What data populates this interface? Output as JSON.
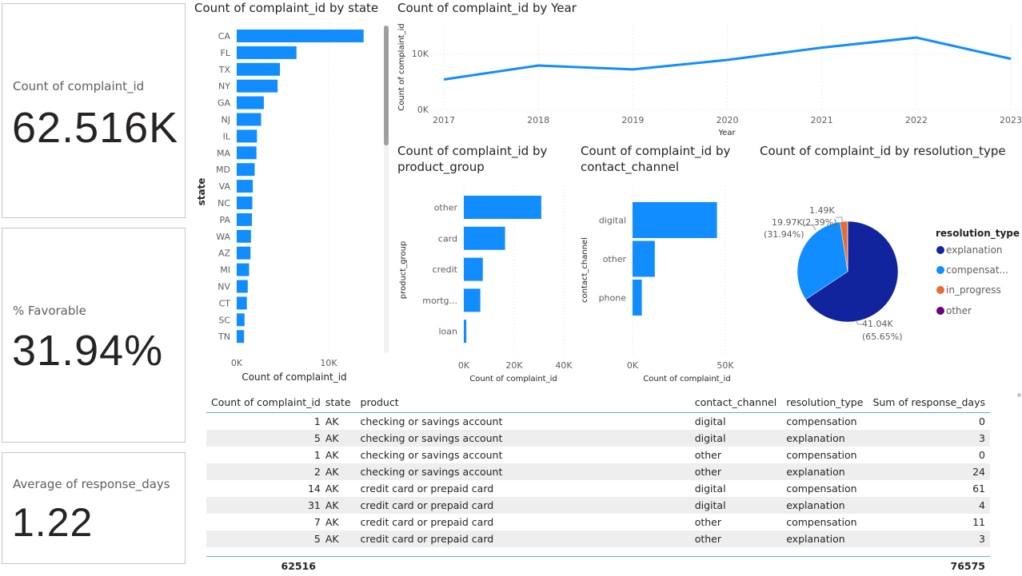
{
  "cards": {
    "count": {
      "label": "Count of complaint_id",
      "value": "62.516K"
    },
    "favorable": {
      "label": "% Favorable",
      "value": "31.94%"
    },
    "response": {
      "label": "Average of response_days",
      "value": "1.22"
    }
  },
  "state_chart": {
    "title": "Count of complaint_id by state",
    "xlabel": "Count of complaint_id",
    "ylabel": "state",
    "xticks": [
      "0K",
      "10K"
    ]
  },
  "year_chart": {
    "title": "Count of complaint_id by Year",
    "xlabel": "Year",
    "ylabel": "Count of complaint_id",
    "yticks": [
      "0K",
      "10K"
    ]
  },
  "product_chart": {
    "title_line1": "Count of complaint_id by",
    "title_line2": "product_group",
    "xlabel": "Count of complaint_id",
    "ylabel": "product_group",
    "xticks": [
      "0K",
      "20K",
      "40K"
    ]
  },
  "channel_chart": {
    "title_line1": "Count of complaint_id by",
    "title_line2": "contact_channel",
    "xlabel": "Count of complaint_id",
    "ylabel": "contact_channel",
    "xticks": [
      "0K",
      "50K"
    ]
  },
  "resolution_chart": {
    "title": "Count of complaint_id by resolution_type",
    "legend_title": "resolution_type",
    "legend": [
      {
        "label": "explanation",
        "color": "#12239e"
      },
      {
        "label": "compensat...",
        "color": "#118dff"
      },
      {
        "label": "in_progress",
        "color": "#e66c37"
      },
      {
        "label": "other",
        "color": "#6b007b"
      }
    ],
    "data_labels": {
      "explanation_value": "41.04K",
      "explanation_pct": "(65.65%)",
      "compensation_value": "19.97K",
      "compensation_pct": "(31.94%)",
      "in_progress_value": "1.49K",
      "in_progress_pct": "(2.39%)"
    }
  },
  "chart_data": [
    {
      "type": "bar",
      "title": "Count of complaint_id by state",
      "xlabel": "Count of complaint_id",
      "ylabel": "state",
      "orientation": "horizontal",
      "categories": [
        "CA",
        "FL",
        "TX",
        "NY",
        "GA",
        "NJ",
        "IL",
        "MA",
        "MD",
        "VA",
        "NC",
        "PA",
        "WA",
        "AZ",
        "MI",
        "NV",
        "CT",
        "SC",
        "TN"
      ],
      "values": [
        13800,
        6500,
        4700,
        4450,
        2950,
        2650,
        2200,
        2150,
        1950,
        1750,
        1700,
        1650,
        1550,
        1500,
        1350,
        1200,
        1100,
        850,
        800
      ],
      "xlim": [
        0,
        14000
      ],
      "color": "#118dff"
    },
    {
      "type": "line",
      "title": "Count of complaint_id by Year",
      "xlabel": "Year",
      "ylabel": "Count of complaint_id",
      "x": [
        "2017",
        "2018",
        "2019",
        "2020",
        "2021",
        "2022",
        "2023"
      ],
      "values": [
        5500,
        8000,
        7300,
        9000,
        11200,
        13000,
        9200
      ],
      "ylim": [
        0,
        15000
      ],
      "grid": true,
      "color": "#118dff"
    },
    {
      "type": "bar",
      "title": "Count of complaint_id by product_group",
      "xlabel": "Count of complaint_id",
      "ylabel": "product_group",
      "orientation": "horizontal",
      "categories": [
        "other",
        "card",
        "credit",
        "mortg...",
        "loan"
      ],
      "values": [
        31000,
        16500,
        7600,
        6600,
        1000
      ],
      "xlim": [
        0,
        40000
      ],
      "color": "#118dff"
    },
    {
      "type": "bar",
      "title": "Count of complaint_id by contact_channel",
      "xlabel": "Count of complaint_id",
      "ylabel": "contact_channel",
      "orientation": "horizontal",
      "categories": [
        "digital",
        "other",
        "phone"
      ],
      "values": [
        45500,
        12000,
        5000
      ],
      "xlim": [
        0,
        50000
      ],
      "color": "#118dff"
    },
    {
      "type": "pie",
      "title": "Count of complaint_id by resolution_type",
      "categories": [
        "explanation",
        "compensation",
        "in_progress",
        "other"
      ],
      "values": [
        41040,
        19970,
        1490,
        16
      ],
      "percent": [
        65.65,
        31.94,
        2.39,
        0.02
      ],
      "legend": "right",
      "colors": [
        "#12239e",
        "#118dff",
        "#e66c37",
        "#6b007b"
      ]
    }
  ],
  "table": {
    "headers": [
      "Count of complaint_id",
      "state",
      "product",
      "contact_channel",
      "resolution_type",
      "Sum of response_days"
    ],
    "rows": [
      [
        "1",
        "AK",
        "checking or savings account",
        "digital",
        "compensation",
        "0"
      ],
      [
        "5",
        "AK",
        "checking or savings account",
        "digital",
        "explanation",
        "3"
      ],
      [
        "1",
        "AK",
        "checking or savings account",
        "other",
        "compensation",
        "0"
      ],
      [
        "2",
        "AK",
        "checking or savings account",
        "other",
        "explanation",
        "24"
      ],
      [
        "14",
        "AK",
        "credit card or prepaid card",
        "digital",
        "compensation",
        "61"
      ],
      [
        "31",
        "AK",
        "credit card or prepaid card",
        "digital",
        "explanation",
        "4"
      ],
      [
        "7",
        "AK",
        "credit card or prepaid card",
        "other",
        "compensation",
        "11"
      ],
      [
        "5",
        "AK",
        "credit card or prepaid card",
        "other",
        "explanation",
        "3"
      ]
    ],
    "totals": {
      "count": "62516",
      "response_days": "76575"
    }
  }
}
